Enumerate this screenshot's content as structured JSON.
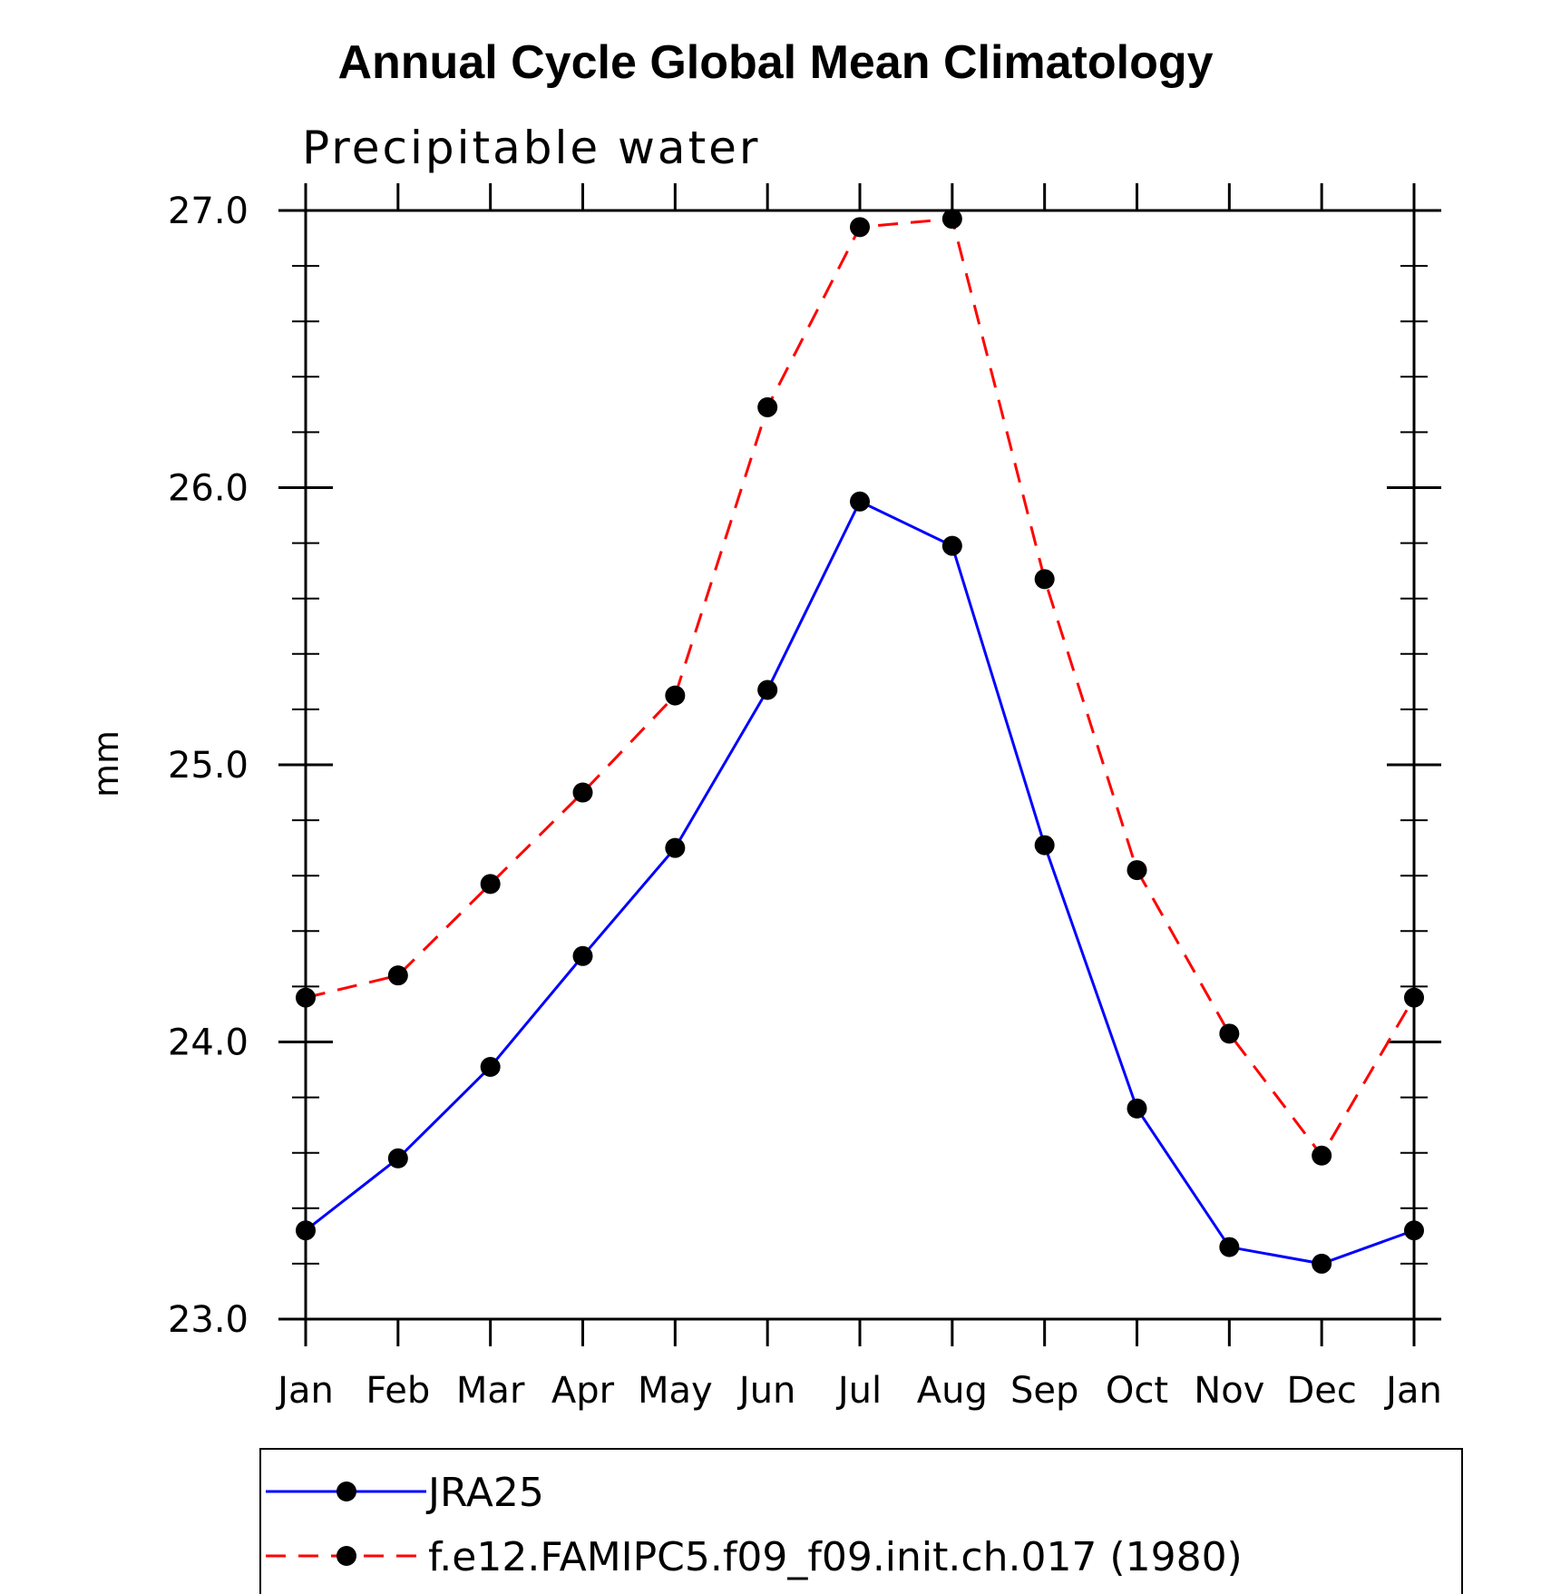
{
  "chart_data": {
    "type": "line",
    "title": "Annual Cycle Global Mean Climatology",
    "subtitle": "Precipitable water",
    "xlabel": "",
    "ylabel": "mm",
    "categories": [
      "Jan",
      "Feb",
      "Mar",
      "Apr",
      "May",
      "Jun",
      "Jul",
      "Aug",
      "Sep",
      "Oct",
      "Nov",
      "Dec",
      "Jan"
    ],
    "ylim": [
      23.0,
      27.0
    ],
    "yticks": [
      "23.0",
      "24.0",
      "25.0",
      "26.0",
      "27.0"
    ],
    "grid": false,
    "legend_placement": "bottom",
    "series": [
      {
        "name": "JRA25",
        "color": "#0000ff",
        "dash": "solid",
        "marker": "filled-circle",
        "values": [
          23.32,
          23.58,
          23.91,
          24.31,
          24.7,
          25.27,
          25.95,
          25.79,
          24.71,
          23.76,
          23.26,
          23.2,
          23.32
        ]
      },
      {
        "name": "f.e12.FAMIPC5.f09_f09.init.ch.017 (1980)",
        "color": "#ff0000",
        "dash": "dashed",
        "marker": "filled-circle",
        "values": [
          24.16,
          24.24,
          24.57,
          24.9,
          25.25,
          26.29,
          26.94,
          26.97,
          25.67,
          24.62,
          24.03,
          23.59,
          24.16
        ]
      }
    ]
  }
}
